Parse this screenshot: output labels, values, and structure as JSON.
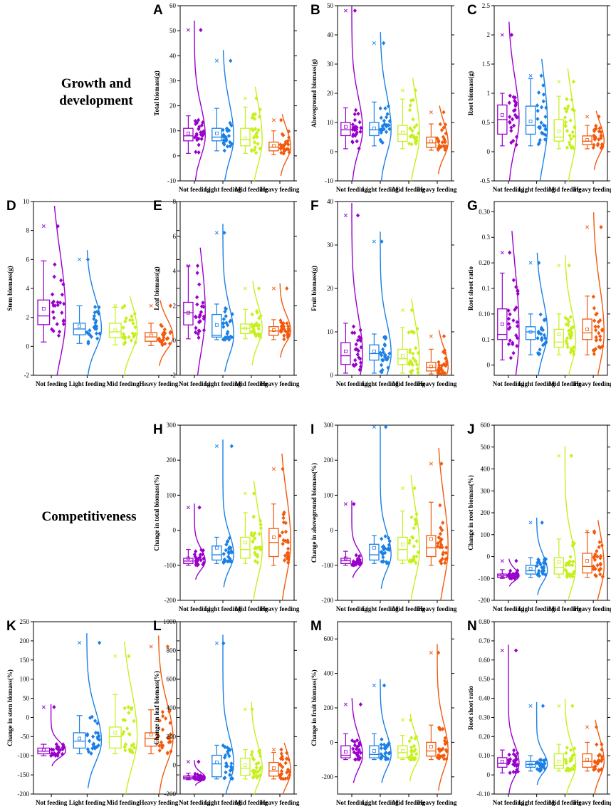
{
  "sections": {
    "growth_title": "Growth and development",
    "competitiveness_title": "Competitiveness"
  },
  "colors": {
    "Not feeding": "#9900cc",
    "Light feeding": "#1a80e6",
    "Mid feeding": "#c6f01c",
    "Heavy feeding": "#f25a0d",
    "axis": "#000000"
  },
  "chart_data": [
    {
      "panel": "A",
      "type": "box",
      "ylabel": "Total biomass(g)",
      "ylim": [
        -10,
        60
      ],
      "yticks": [
        -10,
        0,
        10,
        20,
        30,
        40,
        50,
        60
      ],
      "categories": [
        "Not feeding",
        "Light feeding",
        "Mid feeding",
        "Heavy feeding"
      ],
      "boxes": [
        {
          "q1": 6,
          "median": 8,
          "q3": 11,
          "whislo": 1,
          "whishi": 16,
          "mean": 9,
          "max": 50.3
        },
        {
          "q1": 6,
          "median": 7.5,
          "q3": 11,
          "whislo": 2,
          "whishi": 19,
          "mean": 9,
          "max": 38
        },
        {
          "q1": 4,
          "median": 6.5,
          "q3": 11,
          "whislo": 1,
          "whishi": 19.5,
          "mean": 7,
          "max": 23
        },
        {
          "q1": 2,
          "median": 3.5,
          "q3": 5.5,
          "whislo": 0.5,
          "whishi": 10,
          "mean": 4,
          "max": 14.3
        }
      ]
    },
    {
      "panel": "B",
      "type": "box",
      "ylabel": "Aboveground biomass(g)",
      "ylim": [
        -10,
        50
      ],
      "yticks": [
        -10,
        0,
        10,
        20,
        30,
        40,
        50
      ],
      "categories": [
        "Not feeding",
        "Light feeding",
        "Mid feeding",
        "Heavy feeding"
      ],
      "boxes": [
        {
          "q1": 5.5,
          "median": 7.5,
          "q3": 10,
          "whislo": 1,
          "whishi": 15,
          "mean": 8.5,
          "max": 48.3
        },
        {
          "q1": 5.5,
          "median": 7.5,
          "q3": 10,
          "whislo": 2,
          "whishi": 17,
          "mean": 8,
          "max": 37.2
        },
        {
          "q1": 3.5,
          "median": 6,
          "q3": 9,
          "whislo": 1,
          "whishi": 18,
          "mean": 6.5,
          "max": 21
        },
        {
          "q1": 1.5,
          "median": 3,
          "q3": 5,
          "whislo": 0.5,
          "whishi": 9.5,
          "mean": 3.5,
          "max": 13.5
        }
      ]
    },
    {
      "panel": "C",
      "type": "box",
      "ylabel": "Root biomass(g)",
      "ylim": [
        -0.5,
        2.5
      ],
      "yticks": [
        -0.5,
        0.0,
        0.5,
        1.0,
        1.5,
        2.0,
        2.5
      ],
      "categories": [
        "Not feeding",
        "Light feeding",
        "Mid feeding",
        "Heavy feeding"
      ],
      "boxes": [
        {
          "q1": 0.3,
          "median": 0.55,
          "q3": 0.8,
          "whislo": 0.1,
          "whishi": 1.0,
          "mean": 0.63,
          "max": 2.0
        },
        {
          "q1": 0.3,
          "median": 0.45,
          "q3": 0.78,
          "whislo": 0.1,
          "whishi": 1.25,
          "mean": 0.52,
          "max": 1.3
        },
        {
          "q1": 0.18,
          "median": 0.25,
          "q3": 0.55,
          "whislo": 0.05,
          "whishi": 0.95,
          "mean": 0.35,
          "max": 1.2
        },
        {
          "q1": 0.12,
          "median": 0.18,
          "q3": 0.27,
          "whislo": 0.05,
          "whishi": 0.45,
          "mean": 0.2,
          "max": 0.6
        }
      ]
    },
    {
      "panel": "D",
      "type": "box",
      "ylabel": "Stem biomass(g)",
      "ylim": [
        -2,
        10
      ],
      "yticks": [
        -2,
        0,
        2,
        4,
        6,
        8,
        10
      ],
      "categories": [
        "Not feeding",
        "Light feeding",
        "Mid feeding",
        "Heavy feeding"
      ],
      "boxes": [
        {
          "q1": 1.5,
          "median": 2.1,
          "q3": 3.2,
          "whislo": 0.3,
          "whishi": 5.9,
          "mean": 2.6,
          "max": 8.3
        },
        {
          "q1": 0.8,
          "median": 1.2,
          "q3": 1.6,
          "whislo": 0.2,
          "whishi": 2.8,
          "mean": 1.4,
          "max": 6.0
        },
        {
          "q1": 0.6,
          "median": 1.0,
          "q3": 1.6,
          "whislo": 0.1,
          "whishi": 2.7,
          "mean": 1.1,
          "max": 2.8
        },
        {
          "q1": 0.35,
          "median": 0.65,
          "q3": 0.95,
          "whislo": 0.05,
          "whishi": 1.6,
          "mean": 0.75,
          "max": 2.8
        }
      ]
    },
    {
      "panel": "E",
      "type": "box",
      "ylabel": "Leaf biomass(g)",
      "ylim": [
        -2,
        8
      ],
      "yticks": [
        -2,
        0,
        2,
        4,
        6,
        8
      ],
      "categories": [
        "Not feeding",
        "Light feeding",
        "Mid feeding",
        "Heavy feeding"
      ],
      "boxes": [
        {
          "q1": 0.9,
          "median": 1.6,
          "q3": 2.2,
          "whislo": 0.1,
          "whishi": 4.3,
          "mean": 1.6,
          "max": 4.3
        },
        {
          "q1": 0.2,
          "median": 0.3,
          "q3": 1.5,
          "whislo": 0.05,
          "whishi": 2.1,
          "mean": 0.9,
          "max": 6.2
        },
        {
          "q1": 0.4,
          "median": 0.7,
          "q3": 0.95,
          "whislo": 0.1,
          "whishi": 1.8,
          "mean": 0.7,
          "max": 3.0
        },
        {
          "q1": 0.3,
          "median": 0.55,
          "q3": 0.8,
          "whislo": 0.05,
          "whishi": 1.2,
          "mean": 0.6,
          "max": 3.0
        }
      ]
    },
    {
      "panel": "F",
      "type": "box",
      "ylabel": "Fruit biomass(g)",
      "ylim": [
        0,
        40
      ],
      "yticks": [
        0,
        10,
        20,
        30,
        40
      ],
      "categories": [
        "Not feeding",
        "Light feeding",
        "Mid feeding",
        "Heavy feeding"
      ],
      "boxes": [
        {
          "q1": 2.5,
          "median": 4.5,
          "q3": 7.5,
          "whislo": 0.5,
          "whishi": 12,
          "mean": 5.5,
          "max": 36.8
        },
        {
          "q1": 3.5,
          "median": 5,
          "q3": 7,
          "whislo": 0.5,
          "whishi": 9.5,
          "mean": 5.5,
          "max": 30.8
        },
        {
          "q1": 2.5,
          "median": 3.8,
          "q3": 6,
          "whislo": 0.5,
          "whishi": 11,
          "mean": 4.5,
          "max": 15
        },
        {
          "q1": 1,
          "median": 1.8,
          "q3": 3,
          "whislo": 0.3,
          "whishi": 6,
          "mean": 2,
          "max": 9
        }
      ]
    },
    {
      "panel": "G",
      "type": "box",
      "ylabel": "Root shoot ratio",
      "ylim": [
        -0.02,
        0.32
      ],
      "yticks": [
        0.0,
        0.05,
        0.1,
        0.15,
        0.2,
        0.25,
        0.3
      ],
      "categories": [
        "Not feeding",
        "Light feeding",
        "Mid feeding",
        "Heavy feeding"
      ],
      "boxes": [
        {
          "q1": 0.05,
          "median": 0.06,
          "q3": 0.11,
          "whislo": 0.01,
          "whishi": 0.18,
          "mean": 0.08,
          "max": 0.22
        },
        {
          "q1": 0.05,
          "median": 0.065,
          "q3": 0.075,
          "whislo": 0.02,
          "whishi": 0.1,
          "mean": 0.065,
          "max": 0.2
        },
        {
          "q1": 0.035,
          "median": 0.045,
          "q3": 0.07,
          "whislo": 0.02,
          "whishi": 0.1,
          "mean": 0.06,
          "max": 0.195
        },
        {
          "q1": 0.05,
          "median": 0.063,
          "q3": 0.09,
          "whislo": 0.02,
          "whishi": 0.135,
          "mean": 0.07,
          "max": 0.27
        }
      ]
    },
    {
      "panel": "H",
      "type": "box",
      "ylabel": "Change in total biomass(%)",
      "ylim": [
        -200,
        300
      ],
      "yticks": [
        -200,
        -100,
        0,
        100,
        200,
        300
      ],
      "categories": [
        "Not feeding",
        "Light feeding",
        "Mid feeding",
        "Heavy feeding"
      ],
      "boxes": [
        {
          "q1": -95,
          "median": -88,
          "q3": -80,
          "whislo": -100,
          "whishi": -55,
          "mean": -80,
          "max": 65
        },
        {
          "q1": -85,
          "median": -70,
          "q3": -45,
          "whislo": -95,
          "whishi": -20,
          "mean": -50,
          "max": 240
        },
        {
          "q1": -80,
          "median": -55,
          "q3": -20,
          "whislo": -95,
          "whishi": 50,
          "mean": -35,
          "max": 105
        },
        {
          "q1": -75,
          "median": -35,
          "q3": 5,
          "whislo": -100,
          "whishi": 75,
          "mean": -20,
          "max": 175
        }
      ]
    },
    {
      "panel": "I",
      "type": "box",
      "ylabel": "Change in aboveground biomass(%)",
      "ylim": [
        -200,
        300
      ],
      "yticks": [
        -200,
        -100,
        0,
        100,
        200,
        300
      ],
      "categories": [
        "Not feeding",
        "Light feeding",
        "Mid feeding",
        "Heavy feeding"
      ],
      "boxes": [
        {
          "q1": -95,
          "median": -87,
          "q3": -80,
          "whislo": -100,
          "whishi": -60,
          "mean": -80,
          "max": 75
        },
        {
          "q1": -85,
          "median": -70,
          "q3": -40,
          "whislo": -95,
          "whishi": -15,
          "mean": -50,
          "max": 295
        },
        {
          "q1": -85,
          "median": -55,
          "q3": -20,
          "whislo": -95,
          "whishi": 55,
          "mean": -40,
          "max": 120
        },
        {
          "q1": -75,
          "median": -50,
          "q3": -15,
          "whislo": -100,
          "whishi": 80,
          "mean": -25,
          "max": 190
        }
      ]
    },
    {
      "panel": "J",
      "type": "box",
      "ylabel": "Change in root biomass(%)",
      "ylim": [
        -200,
        600
      ],
      "yticks": [
        -200,
        -100,
        0,
        100,
        200,
        300,
        400,
        500,
        600
      ],
      "categories": [
        "Not feeding",
        "Light feeding",
        "Mid feeding",
        "Heavy feeding"
      ],
      "boxes": [
        {
          "q1": -95,
          "median": -88,
          "q3": -80,
          "whislo": -100,
          "whishi": -60,
          "mean": -85,
          "max": -20
        },
        {
          "q1": -80,
          "median": -65,
          "q3": -40,
          "whislo": -95,
          "whishi": -5,
          "mean": -55,
          "max": 155
        },
        {
          "q1": -80,
          "median": -50,
          "q3": -5,
          "whislo": -95,
          "whishi": 80,
          "mean": -25,
          "max": 460
        },
        {
          "q1": -75,
          "median": -45,
          "q3": 15,
          "whislo": -95,
          "whishi": 110,
          "mean": -20,
          "max": 115
        }
      ]
    },
    {
      "panel": "K",
      "type": "box",
      "ylabel": "Change in stem biomass(%)",
      "ylim": [
        -200,
        250
      ],
      "yticks": [
        -200,
        -150,
        -100,
        -50,
        0,
        50,
        100,
        150,
        200,
        250
      ],
      "categories": [
        "Not feeding",
        "Light feeding",
        "Mid feeding",
        "Heavy feeding"
      ],
      "boxes": [
        {
          "q1": -95,
          "median": -88,
          "q3": -80,
          "whislo": -100,
          "whishi": -70,
          "mean": -85,
          "max": 27
        },
        {
          "q1": -80,
          "median": -62,
          "q3": -40,
          "whislo": -95,
          "whishi": 5,
          "mean": -55,
          "max": 195
        },
        {
          "q1": -80,
          "median": -50,
          "q3": -25,
          "whislo": -95,
          "whishi": 60,
          "mean": -40,
          "max": 160
        },
        {
          "q1": -75,
          "median": -55,
          "q3": -40,
          "whislo": -95,
          "whishi": 20,
          "mean": -45,
          "max": 185
        }
      ]
    },
    {
      "panel": "L",
      "type": "box",
      "ylabel": "Change in leaf biomass(%)",
      "ylim": [
        -200,
        1000
      ],
      "yticks": [
        -200,
        0,
        200,
        400,
        600,
        800,
        1000
      ],
      "categories": [
        "Not feeding",
        "Light feeding",
        "Mid feeding",
        "Heavy feeding"
      ],
      "boxes": [
        {
          "q1": -95,
          "median": -85,
          "q3": -75,
          "whislo": -100,
          "whishi": -55,
          "mean": -80,
          "max": 25
        },
        {
          "q1": -80,
          "median": 10,
          "q3": 70,
          "whislo": -95,
          "whishi": 140,
          "mean": 20,
          "max": 850
        },
        {
          "q1": -70,
          "median": -20,
          "q3": 50,
          "whislo": -95,
          "whishi": 110,
          "mean": 0,
          "max": 390
        },
        {
          "q1": -75,
          "median": -40,
          "q3": 20,
          "whislo": -95,
          "whishi": 90,
          "mean": -20,
          "max": 110
        }
      ]
    },
    {
      "panel": "M",
      "type": "box",
      "ylabel": "Change in fruit biomass(%)",
      "ylim": [
        -300,
        700
      ],
      "yticks": [
        -200,
        0,
        200,
        400,
        600
      ],
      "categories": [
        "Not feeding",
        "Light feeding",
        "Mid feeding",
        "Heavy feeding"
      ],
      "boxes": [
        {
          "q1": -90,
          "median": -75,
          "q3": -20,
          "whislo": -100,
          "whishi": 50,
          "mean": -55,
          "max": 220
        },
        {
          "q1": -90,
          "median": -70,
          "q3": -20,
          "whislo": -100,
          "whishi": 50,
          "mean": -50,
          "max": 330
        },
        {
          "q1": -90,
          "median": -60,
          "q3": -20,
          "whislo": -100,
          "whishi": 40,
          "mean": -50,
          "max": 130
        },
        {
          "q1": -80,
          "median": -50,
          "q3": 0,
          "whislo": -100,
          "whishi": 100,
          "mean": -25,
          "max": 520
        }
      ]
    },
    {
      "panel": "N",
      "type": "box",
      "ylabel": "Root shoot ratio",
      "ylim": [
        -0.1,
        0.8
      ],
      "yticks": [
        -0.1,
        0.0,
        0.1,
        0.2,
        0.3,
        0.4,
        0.5,
        0.6,
        0.7,
        0.8
      ],
      "categories": [
        "Not feeding",
        "Light feeding",
        "Mid feeding",
        "Heavy feeding"
      ],
      "boxes": [
        {
          "q1": 0.04,
          "median": 0.06,
          "q3": 0.09,
          "whislo": 0.01,
          "whishi": 0.13,
          "mean": 0.07,
          "max": 0.65
        },
        {
          "q1": 0.04,
          "median": 0.055,
          "q3": 0.07,
          "whislo": 0.02,
          "whishi": 0.1,
          "mean": 0.055,
          "max": 0.36
        },
        {
          "q1": 0.035,
          "median": 0.05,
          "q3": 0.11,
          "whislo": 0.02,
          "whishi": 0.16,
          "mean": 0.07,
          "max": 0.36
        },
        {
          "q1": 0.04,
          "median": 0.07,
          "q3": 0.11,
          "whislo": 0.02,
          "whishi": 0.17,
          "mean": 0.08,
          "max": 0.25
        }
      ]
    }
  ]
}
